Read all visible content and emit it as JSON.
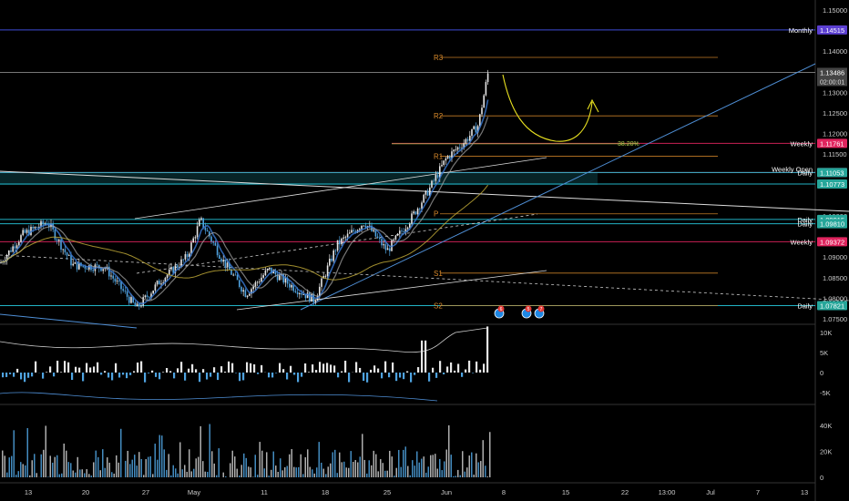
{
  "chart_data": {
    "type": "candlestick",
    "symbol_hint": "",
    "price_axis": {
      "ylim": [
        1.0735,
        1.153
      ],
      "ticks": [
        "1.15000",
        "1.14000",
        "1.13000",
        "1.12500",
        "1.12000",
        "1.11500",
        "1.10000",
        "1.09000",
        "1.08500",
        "1.08000",
        "1.07500"
      ]
    },
    "time_axis": {
      "ticks": [
        "13",
        "20",
        "27",
        "May",
        "11",
        "18",
        "25",
        "Jun",
        "8",
        "15",
        "22",
        "13:00",
        "Jul",
        "7",
        "13"
      ]
    },
    "close_price": {
      "value": 1.13486,
      "label": "1.13486",
      "countdown": "02:00:01"
    },
    "levels": [
      {
        "name": "Monthly",
        "price": 1.14515,
        "label": "1.14515",
        "color": "#5b3fd1",
        "line": "#4455ee"
      },
      {
        "name": "Weekly",
        "price": 1.11761,
        "label": "1.11761",
        "color": "#e0245e",
        "line": "#e0245e"
      },
      {
        "name": "Weekly Open",
        "price": 1.11053,
        "label": "1.11053",
        "color": "#c2185b",
        "line": "#e0245e"
      },
      {
        "name": "Daily",
        "price": 1.11053,
        "label": "1.11053",
        "color": "#26a69a",
        "line": "#26c6da"
      },
      {
        "name": "",
        "price": 1.10773,
        "label": "1.10773",
        "color": "#26a69a",
        "line": "#26c6da"
      },
      {
        "name": "Daily",
        "price": 1.09915,
        "label": "1.09915",
        "color": "#26a69a",
        "line": "#26c6da"
      },
      {
        "name": "Daily",
        "price": 1.0981,
        "label": "1.09810",
        "color": "#26a69a",
        "line": "#26c6da"
      },
      {
        "name": "Weekly",
        "price": 1.09372,
        "label": "1.09372",
        "color": "#e0245e",
        "line": "#e0245e"
      },
      {
        "name": "Daily",
        "price": 1.07821,
        "label": "1.07821",
        "color": "#26a69a",
        "line": "#26c6da"
      }
    ],
    "pivots": [
      {
        "name": "R3",
        "price": 1.1385
      },
      {
        "name": "R2",
        "price": 1.1243
      },
      {
        "name": "R1",
        "price": 1.1145
      },
      {
        "name": "P",
        "price": 1.1005
      },
      {
        "name": "S1",
        "price": 1.0861
      },
      {
        "name": "S2",
        "price": 1.0782
      }
    ],
    "fib_label": "38.20%",
    "oscillator": {
      "ticks": [
        "10K",
        "5K",
        "0",
        "-5K"
      ],
      "ylim": [
        -7000,
        12500
      ]
    },
    "volume": {
      "ticks": [
        "40K",
        "20K",
        "0"
      ],
      "ylim": [
        0,
        55000
      ]
    },
    "event_flags": [
      "6",
      "5",
      "7"
    ]
  }
}
